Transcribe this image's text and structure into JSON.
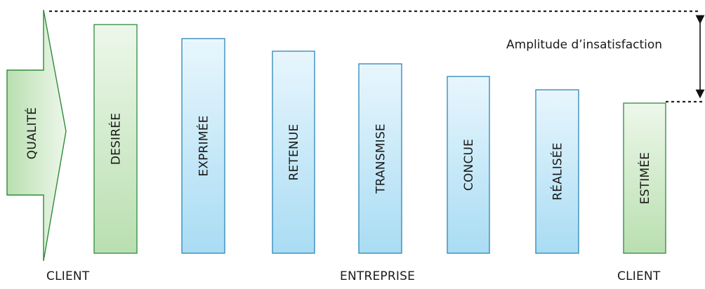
{
  "arrow_label": "QUALITÉ",
  "amplitude_label": "Amplitude d’insatisfaction",
  "bars": [
    {
      "label": "DESIRÉE",
      "kind": "client"
    },
    {
      "label": "EXPRIMÉE",
      "kind": "entreprise"
    },
    {
      "label": "RETENUE",
      "kind": "entreprise"
    },
    {
      "label": "TRANSMISE",
      "kind": "entreprise"
    },
    {
      "label": "CONCUE",
      "kind": "entreprise"
    },
    {
      "label": "RÉALISÉE",
      "kind": "entreprise"
    },
    {
      "label": "ESTIMÉE",
      "kind": "client"
    }
  ],
  "footer": {
    "client_left": "CLIENT",
    "entreprise": "ENTREPRISE",
    "client_right": "CLIENT"
  },
  "colors": {
    "client_fill_light": "#edf7ea",
    "client_fill_dark": "#b9dfb0",
    "client_stroke": "#2f8a3c",
    "entreprise_fill_light": "#e8f6fd",
    "entreprise_fill_dark": "#a9dcf3",
    "entreprise_stroke": "#2a86b8",
    "dashed_line": "#222222"
  }
}
